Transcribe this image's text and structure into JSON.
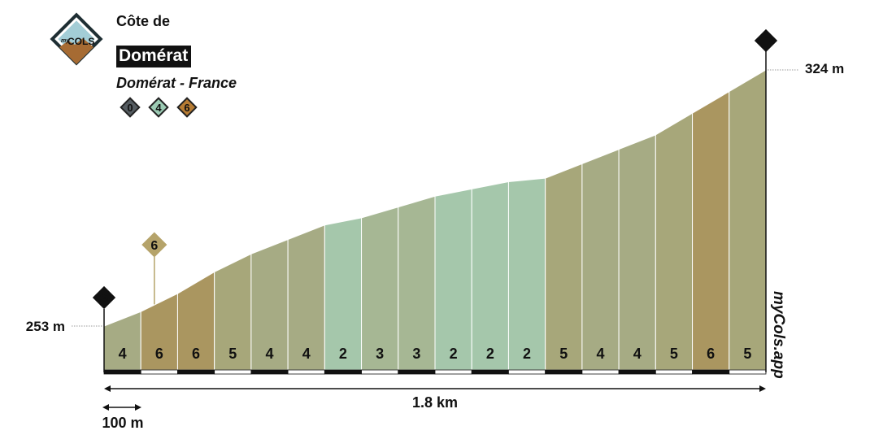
{
  "header": {
    "subtitle": "Côte de",
    "title": "Domérat",
    "location": "Domérat - France",
    "logo_text_small": "my",
    "logo_text_big": "COLS",
    "ratings": [
      {
        "label": "0",
        "color": "#555c61"
      },
      {
        "label": "4",
        "color": "#9ccbb4"
      },
      {
        "label": "6",
        "color": "#b77c33"
      }
    ]
  },
  "chart_data": {
    "type": "area",
    "x_unit": "km",
    "distance_km": 1.8,
    "distance_label": "1.8 km",
    "segment_length_m": 100,
    "scale_label": "100 m",
    "start_elevation_m": 253,
    "end_elevation_m": 324,
    "start_elevation_label": "253 m",
    "end_elevation_label": "324 m",
    "start_marker": "S",
    "finish_marker": "F",
    "elevations_m": [
      253,
      257,
      262,
      268,
      273,
      277,
      281,
      283,
      286,
      289,
      291,
      293,
      294,
      298,
      302,
      306,
      312,
      318,
      324
    ],
    "segment_gradients": [
      4,
      6,
      6,
      5,
      4,
      4,
      2,
      3,
      3,
      2,
      2,
      2,
      5,
      4,
      4,
      5,
      6,
      5
    ],
    "max_gradient_marker": {
      "label": "6",
      "segment_index": 1
    },
    "gradient_colors": {
      "2": "#a5c7ab",
      "3": "#a6b794",
      "4": "#a6ab84",
      "5": "#a7a77a",
      "6": "#aa9660"
    },
    "marker_color": "#b5a36a"
  },
  "brand": "myCols.app"
}
